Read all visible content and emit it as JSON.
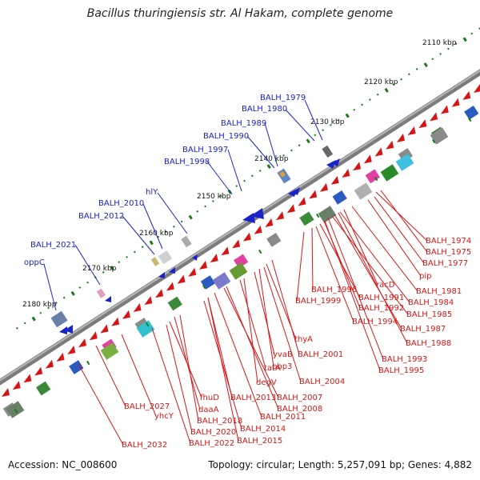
{
  "title": "Bacillus thuringiensis str. Al Hakam, complete genome",
  "accession_text": "Accession: NC_008600",
  "summary_text": "Topology: circular; Length: 5,257,091 bp; Genes: 4,882",
  "colors": {
    "forward": "#1a23c8",
    "reverse": "#d61616",
    "backbone": "#808080",
    "tick": "#1a7a1a"
  },
  "ticks": [
    "2110 kbp",
    "2120 kbp",
    "2130 kbp",
    "2140 kbp",
    "2150 kbp",
    "2160 kbp",
    "2170 kbp",
    "2180 kbp"
  ],
  "forward_genes": [
    "BALH_1979",
    "BALH_1980",
    "BALH_1989",
    "BALH_1990",
    "BALH_1997",
    "BALH_1998",
    "hlY",
    "BALH_2010",
    "BALH_2012",
    "BALH_2021",
    "oppC"
  ],
  "reverse_genes": [
    "BALH_1974",
    "BALH_1975",
    "BALH_1977",
    "pip",
    "BALH_1981",
    "racD",
    "BALH_1984",
    "BALH_1985",
    "BALH_1996",
    "BALH_1991",
    "BALH_1992",
    "BALH_1999",
    "BALH_1994",
    "BALH_1987",
    "BALH_1988",
    "thyA",
    "BALH_2001",
    "BALH_1993",
    "BALH_1995",
    "yvaB",
    "pbp3",
    "tatA",
    "degV",
    "BALH_2004",
    "BALH_2007",
    "BALH_2013",
    "BALH_2008",
    "fhuD",
    "BALH_2011",
    "BALH_2027",
    "daaA",
    "yhcY",
    "BALH_2018",
    "BALH_2014",
    "BALH_2020",
    "BALH_2015",
    "BALH_2022",
    "BALH_2032"
  ]
}
